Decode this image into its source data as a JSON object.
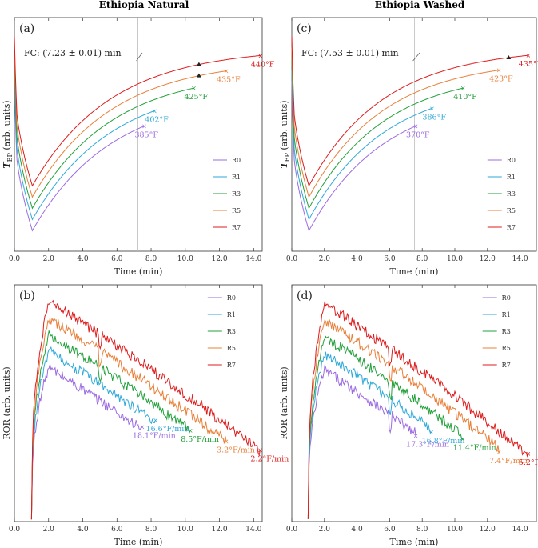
{
  "chart_data": [
    {
      "panel": "(a)",
      "type": "line",
      "group_title": "Ethiopia Natural",
      "xlabel": "Time (min)",
      "ylabel": "T_BP (arb. units)",
      "ylabel_main": "T",
      "ylabel_sub": "BP",
      "ylabel_tail": " (arb. units)",
      "xlim": [
        0,
        14.5
      ],
      "xticks": [
        "0.0",
        "2.0",
        "4.0",
        "6.0",
        "8.0",
        "10.0",
        "12.0",
        "14.0"
      ],
      "fc_label": "FC: (7.23 ± 0.01) min",
      "fc_time": 7.23,
      "series": [
        {
          "name": "R0",
          "color": "#9b6be0",
          "end_time": 7.6,
          "end_label": "385°F"
        },
        {
          "name": "R1",
          "color": "#2fa9d9",
          "end_time": 8.2,
          "end_label": "402°F"
        },
        {
          "name": "R3",
          "color": "#22a03a",
          "end_time": 10.5,
          "end_label": "425°F"
        },
        {
          "name": "R5",
          "color": "#e8803a",
          "end_time": 12.4,
          "end_label": "435°F",
          "marker_time": 10.8
        },
        {
          "name": "R7",
          "color": "#dd1c1c",
          "end_time": 14.4,
          "end_label": "440°F",
          "marker_time": 10.8
        }
      ]
    },
    {
      "panel": "(c)",
      "type": "line",
      "group_title": "Ethiopia Washed",
      "xlabel": "Time (min)",
      "ylabel": "T_BP (arb. units)",
      "ylabel_main": "T",
      "ylabel_sub": "BP",
      "ylabel_tail": " (arb. units)",
      "xlim": [
        0,
        15
      ],
      "xticks": [
        "0.0",
        "2.0",
        "4.0",
        "6.0",
        "8.0",
        "10.0",
        "12.0",
        "14.0"
      ],
      "fc_label": "FC: (7.53 ± 0.01) min",
      "fc_time": 7.53,
      "series": [
        {
          "name": "R0",
          "color": "#9b6be0",
          "end_time": 7.6,
          "end_label": "370°F"
        },
        {
          "name": "R1",
          "color": "#2fa9d9",
          "end_time": 8.6,
          "end_label": "386°F"
        },
        {
          "name": "R3",
          "color": "#22a03a",
          "end_time": 10.5,
          "end_label": "410°F"
        },
        {
          "name": "R5",
          "color": "#e8803a",
          "end_time": 12.7,
          "end_label": "423°F"
        },
        {
          "name": "R7",
          "color": "#dd1c1c",
          "end_time": 14.5,
          "end_label": "435°F",
          "marker_time": 13.3
        }
      ]
    },
    {
      "panel": "(b)",
      "type": "line",
      "xlabel": "Time (min)",
      "ylabel": "ROR (arb. units)",
      "xlim": [
        0,
        14.5
      ],
      "xticks": [
        "0.0",
        "2.0",
        "4.0",
        "6.0",
        "8.0",
        "10.0",
        "12.0",
        "14.0"
      ],
      "series": [
        {
          "name": "R0",
          "color": "#9b6be0",
          "end_time": 7.5,
          "end_label": "18.1°F/min"
        },
        {
          "name": "R1",
          "color": "#2fa9d9",
          "end_time": 8.3,
          "end_label": "16.6°F/min"
        },
        {
          "name": "R3",
          "color": "#22a03a",
          "end_time": 10.3,
          "end_label": "8.5°F/min"
        },
        {
          "name": "R5",
          "color": "#e8803a",
          "end_time": 12.4,
          "end_label": "3.2°F/min"
        },
        {
          "name": "R7",
          "color": "#dd1c1c",
          "end_time": 14.4,
          "end_label": "2.2°F/min"
        }
      ]
    },
    {
      "panel": "(d)",
      "type": "line",
      "xlabel": "Time (min)",
      "ylabel": "ROR (arb. units)",
      "xlim": [
        0,
        15
      ],
      "xticks": [
        "0.0",
        "2.0",
        "4.0",
        "6.0",
        "8.0",
        "10.0",
        "12.0",
        "14.0"
      ],
      "series": [
        {
          "name": "R0",
          "color": "#9b6be0",
          "end_time": 7.6,
          "end_label": "17.3°F/min"
        },
        {
          "name": "R1",
          "color": "#2fa9d9",
          "end_time": 8.6,
          "end_label": "16.8°F/min"
        },
        {
          "name": "R3",
          "color": "#22a03a",
          "end_time": 10.5,
          "end_label": "11.4°F/min"
        },
        {
          "name": "R5",
          "color": "#e8803a",
          "end_time": 12.7,
          "end_label": "7.4°F/min"
        },
        {
          "name": "R7",
          "color": "#dd1c1c",
          "end_time": 14.5,
          "end_label": "5.2°F/min"
        }
      ]
    }
  ]
}
